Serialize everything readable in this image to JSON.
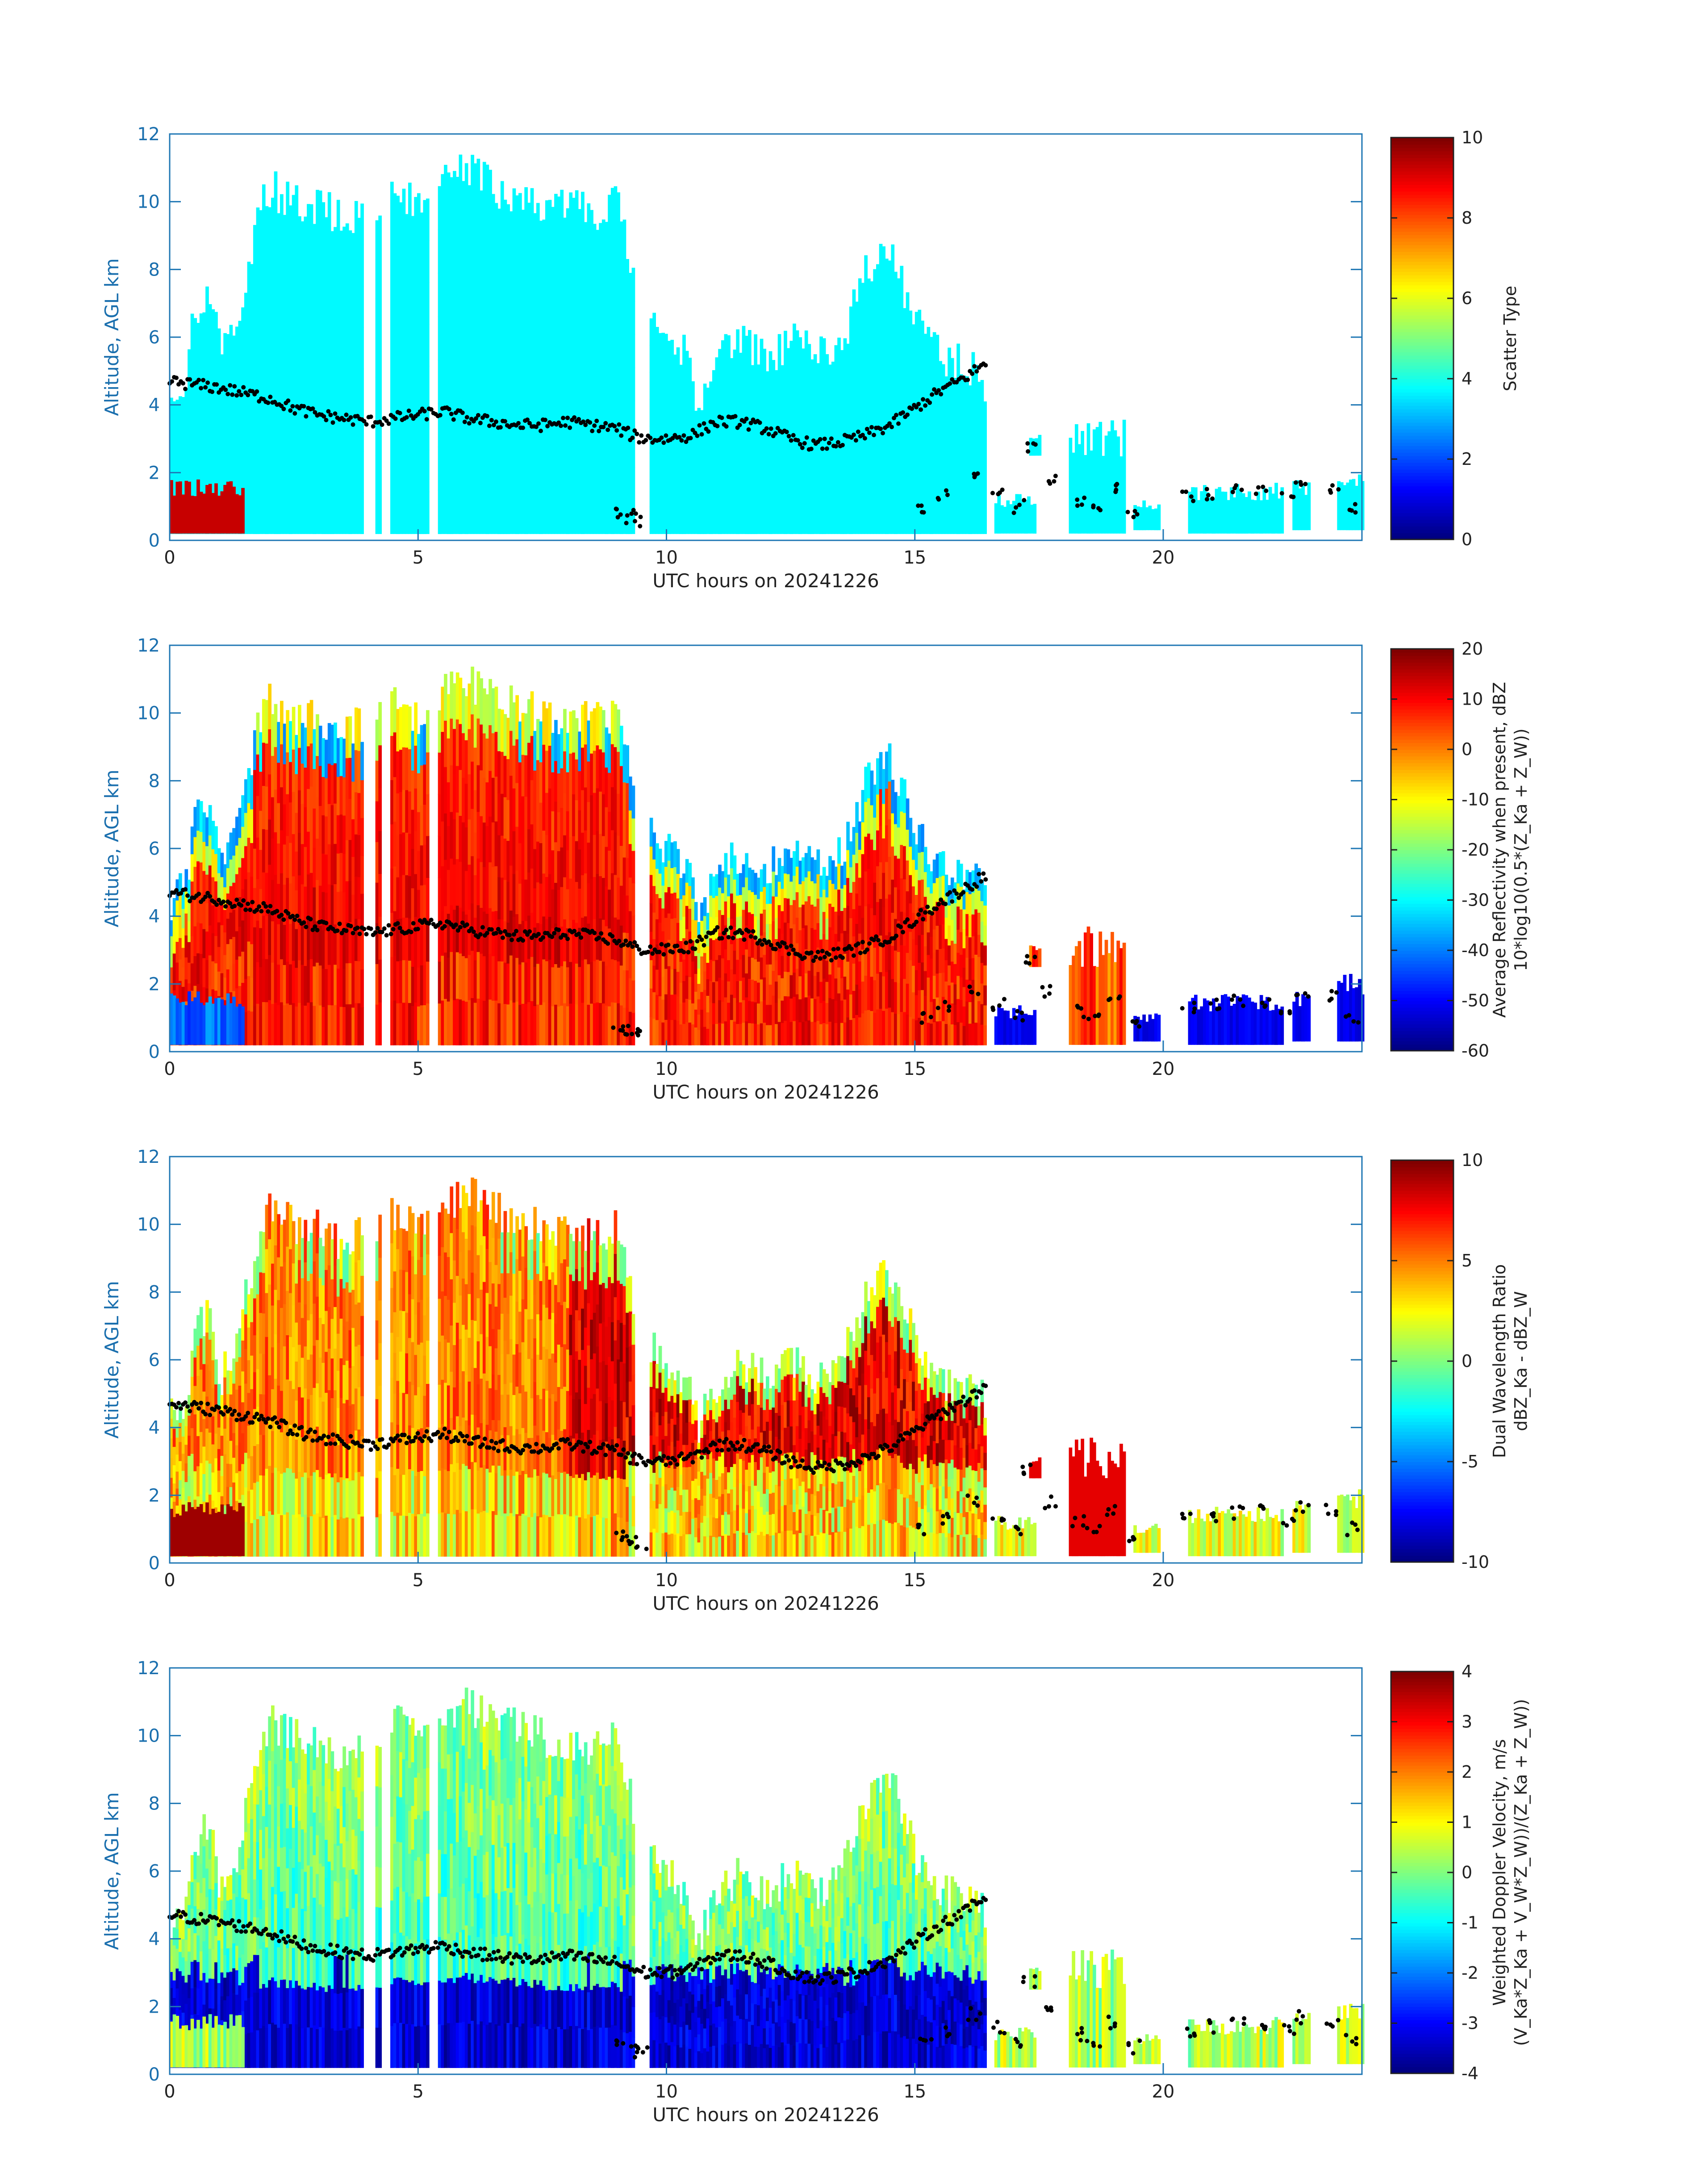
{
  "chart_data": [
    {
      "type": "heatmap",
      "title": "",
      "xlabel": "UTC hours on 20241226",
      "ylabel": "Altitude, AGL km",
      "xlim": [
        0,
        24
      ],
      "ylim": [
        0,
        12
      ],
      "xticks": [
        0,
        5,
        10,
        15,
        20
      ],
      "yticks": [
        0,
        2,
        4,
        6,
        8,
        10,
        12
      ],
      "colorbar": {
        "label_lines": [
          "Scatter Type"
        ],
        "clim": [
          0,
          10
        ],
        "ticks": [
          0,
          2,
          4,
          6,
          8,
          10
        ],
        "colormap": "jet"
      },
      "field_description_values": {
        "dominant_value": 3.7,
        "low_cloud_value": 9.3
      },
      "marker_series_name": ""
    },
    {
      "type": "heatmap",
      "title": "",
      "xlabel": "UTC hours on 20241226",
      "ylabel": "Altitude, AGL km",
      "xlim": [
        0,
        24
      ],
      "ylim": [
        0,
        12
      ],
      "xticks": [
        0,
        5,
        10,
        15,
        20
      ],
      "yticks": [
        0,
        2,
        4,
        6,
        8,
        10,
        12
      ],
      "colorbar": {
        "label_lines": [
          "Average Reflectivity when present, dBZ",
          "10*log10(0.5*(Z_Ka + Z_W))"
        ],
        "clim": [
          -60,
          20
        ],
        "ticks": [
          -60,
          -50,
          -40,
          -30,
          -20,
          -10,
          0,
          10,
          20
        ],
        "colormap": "jet"
      },
      "marker_series_name": ""
    },
    {
      "type": "heatmap",
      "title": "",
      "xlabel": "UTC hours on 20241226",
      "ylabel": "Altitude, AGL km",
      "xlim": [
        0,
        24
      ],
      "ylim": [
        0,
        12
      ],
      "xticks": [
        0,
        5,
        10,
        15,
        20
      ],
      "yticks": [
        0,
        2,
        4,
        6,
        8,
        10,
        12
      ],
      "colorbar": {
        "label_lines": [
          "Dual Wavelength Ratio",
          "dBZ_Ka - dBZ_W"
        ],
        "clim": [
          -10,
          10
        ],
        "ticks": [
          -10,
          -5,
          0,
          5,
          10
        ],
        "colormap": "jet"
      },
      "marker_series_name": ""
    },
    {
      "type": "heatmap",
      "title": "",
      "xlabel": "UTC hours on 20241226",
      "ylabel": "Altitude, AGL km",
      "xlim": [
        0,
        24
      ],
      "ylim": [
        0,
        12
      ],
      "xticks": [
        0,
        5,
        10,
        15,
        20
      ],
      "yticks": [
        0,
        2,
        4,
        6,
        8,
        10,
        12
      ],
      "colorbar": {
        "label_lines": [
          "Weighted Doppler Velocity, m/s",
          "(V_Ka*Z_Ka + V_W*Z_W))/(Z_Ka + Z_W))"
        ],
        "clim": [
          -4,
          4
        ],
        "ticks": [
          -4,
          -3,
          -2,
          -1,
          0,
          1,
          2,
          3,
          4
        ],
        "colormap": "jet"
      },
      "marker_series_name": ""
    }
  ],
  "cloud_echo": {
    "top_km": [
      [
        0.0,
        5.0
      ],
      [
        0.3,
        5.5
      ],
      [
        0.5,
        7.5
      ],
      [
        0.8,
        8.0
      ],
      [
        1.0,
        6.0
      ],
      [
        1.3,
        7.0
      ],
      [
        1.5,
        8.5
      ],
      [
        1.8,
        10.5
      ],
      [
        2.0,
        11.0
      ],
      [
        2.5,
        10.5
      ],
      [
        3.0,
        10.5
      ],
      [
        3.5,
        10.0
      ],
      [
        4.0,
        10.5
      ],
      [
        4.5,
        11.0
      ],
      [
        5.0,
        10.5
      ],
      [
        5.5,
        11.2
      ],
      [
        6.0,
        11.5
      ],
      [
        6.5,
        11.0
      ],
      [
        7.0,
        10.8
      ],
      [
        7.5,
        10.5
      ],
      [
        8.0,
        10.5
      ],
      [
        8.5,
        10.3
      ],
      [
        9.0,
        10.5
      ],
      [
        9.3,
        8.5
      ],
      [
        9.6,
        7.0
      ],
      [
        10.0,
        6.5
      ],
      [
        10.4,
        6.0
      ],
      [
        10.6,
        4.5
      ],
      [
        11.0,
        6.0
      ],
      [
        11.5,
        6.5
      ],
      [
        12.0,
        6.0
      ],
      [
        12.5,
        6.5
      ],
      [
        13.0,
        6.0
      ],
      [
        13.5,
        6.5
      ],
      [
        14.0,
        8.5
      ],
      [
        14.5,
        9.2
      ],
      [
        15.0,
        7.0
      ],
      [
        15.5,
        6.0
      ],
      [
        16.0,
        5.8
      ],
      [
        16.3,
        5.5
      ],
      [
        16.4,
        5.2
      ]
    ],
    "bottom_km": 0.2,
    "end_hour": 16.4,
    "melting_level_km": 3.0,
    "low_layer": {
      "start": 0.0,
      "end": 1.5,
      "top_km": 1.8
    },
    "gaps": [
      [
        3.9,
        4.1
      ],
      [
        4.25,
        4.4
      ],
      [
        5.2,
        5.35
      ],
      [
        9.3,
        9.6
      ]
    ],
    "patches": [
      {
        "x0": 16.6,
        "x1": 17.4,
        "y0": 0.2,
        "y1": 1.4
      },
      {
        "x0": 17.3,
        "x1": 17.5,
        "y0": 2.5,
        "y1": 3.2
      },
      {
        "x0": 18.1,
        "x1": 19.2,
        "y0": 0.2,
        "y1": 3.7
      },
      {
        "x0": 19.4,
        "x1": 19.9,
        "y0": 0.3,
        "y1": 1.2
      },
      {
        "x0": 20.5,
        "x1": 22.4,
        "y0": 0.2,
        "y1": 1.7
      },
      {
        "x0": 22.6,
        "x1": 22.9,
        "y0": 0.3,
        "y1": 1.9
      },
      {
        "x0": 23.5,
        "x1": 24.0,
        "y0": 0.3,
        "y1": 2.3
      }
    ]
  },
  "marker_track_km": [
    [
      0.0,
      4.7
    ],
    [
      1.0,
      4.5
    ],
    [
      2.0,
      4.2
    ],
    [
      2.5,
      3.9
    ],
    [
      3.0,
      3.7
    ],
    [
      3.5,
      3.6
    ],
    [
      4.0,
      3.5
    ],
    [
      4.5,
      3.6
    ],
    [
      5.0,
      3.7
    ],
    [
      5.5,
      3.8
    ],
    [
      6.0,
      3.6
    ],
    [
      6.5,
      3.5
    ],
    [
      7.0,
      3.4
    ],
    [
      7.5,
      3.4
    ],
    [
      8.0,
      3.5
    ],
    [
      8.5,
      3.4
    ],
    [
      9.0,
      3.3
    ],
    [
      9.3,
      3.1
    ],
    [
      9.6,
      3.0
    ],
    [
      10.0,
      3.0
    ],
    [
      10.5,
      3.1
    ],
    [
      11.0,
      3.5
    ],
    [
      11.5,
      3.5
    ],
    [
      12.0,
      3.3
    ],
    [
      12.5,
      3.0
    ],
    [
      13.0,
      2.8
    ],
    [
      13.5,
      2.9
    ],
    [
      14.0,
      3.1
    ],
    [
      14.5,
      3.4
    ],
    [
      15.0,
      3.9
    ],
    [
      15.5,
      4.4
    ],
    [
      16.0,
      4.8
    ],
    [
      16.4,
      5.2
    ]
  ],
  "marker_extra_km": [
    [
      9.0,
      0.8
    ],
    [
      9.3,
      0.7
    ],
    [
      9.5,
      0.6
    ],
    [
      15.2,
      1.0
    ],
    [
      15.6,
      1.3
    ],
    [
      16.2,
      1.8
    ],
    [
      16.7,
      1.4
    ],
    [
      17.1,
      1.0
    ],
    [
      17.3,
      2.7
    ],
    [
      17.7,
      1.8
    ],
    [
      18.3,
      1.2
    ],
    [
      18.6,
      0.9
    ],
    [
      19.0,
      1.5
    ],
    [
      19.4,
      0.8
    ],
    [
      20.5,
      1.3
    ],
    [
      21.0,
      1.4
    ],
    [
      21.5,
      1.5
    ],
    [
      22.0,
      1.5
    ],
    [
      22.5,
      1.3
    ],
    [
      22.8,
      1.7
    ],
    [
      23.4,
      1.6
    ],
    [
      23.8,
      1.0
    ]
  ]
}
